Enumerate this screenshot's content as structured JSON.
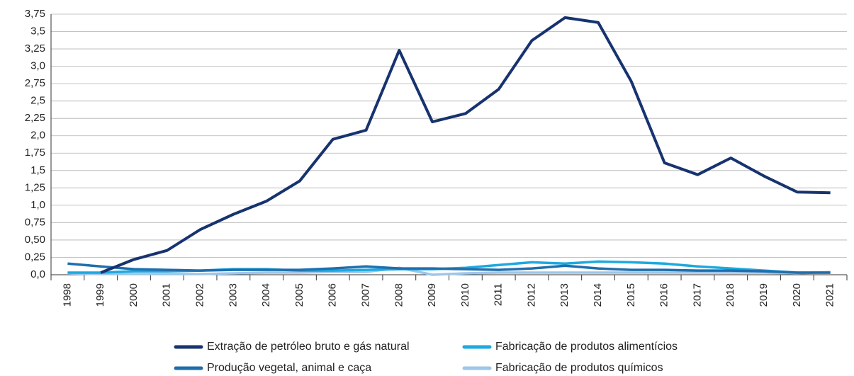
{
  "chart_data": {
    "type": "line",
    "categories": [
      "1998",
      "1999",
      "2000",
      "2001",
      "2002",
      "2003",
      "2004",
      "2005",
      "2006",
      "2007",
      "2008",
      "2009",
      "2010",
      "2011",
      "2012",
      "2013",
      "2014",
      "2015",
      "2016",
      "2017",
      "2018",
      "2019",
      "2020",
      "2021"
    ],
    "series": [
      {
        "name": "Extração de petróleo bruto e gás natural",
        "color": "#17336f",
        "values": [
          null,
          0.03,
          0.22,
          0.35,
          0.65,
          0.87,
          1.06,
          1.35,
          1.95,
          2.08,
          3.23,
          2.2,
          2.32,
          2.67,
          3.37,
          3.7,
          3.63,
          2.78,
          1.61,
          1.44,
          1.68,
          1.42,
          1.19,
          1.18
        ]
      },
      {
        "name": "Produção vegetal, animal e caça",
        "color": "#1f6ead",
        "values": [
          0.16,
          0.12,
          0.08,
          0.07,
          0.06,
          0.07,
          0.07,
          0.07,
          0.09,
          0.12,
          0.09,
          0.09,
          0.08,
          0.07,
          0.09,
          0.13,
          0.09,
          0.07,
          0.07,
          0.06,
          0.06,
          0.05,
          0.03,
          0.03
        ]
      },
      {
        "name": "Fabricação de produtos alimentícios",
        "color": "#1ca9df",
        "values": [
          0.03,
          0.03,
          0.05,
          0.05,
          0.06,
          0.08,
          0.08,
          0.06,
          0.06,
          0.07,
          0.08,
          0.08,
          0.1,
          0.14,
          0.18,
          0.16,
          0.19,
          0.18,
          0.16,
          0.12,
          0.09,
          0.06,
          0.03,
          0.03
        ]
      },
      {
        "name": "Fabricação de produtos químicos",
        "color": "#9ec6ea",
        "values": [
          0.02,
          0.01,
          0.01,
          0.01,
          0.01,
          0.02,
          0.03,
          0.03,
          0.04,
          0.04,
          0.1,
          0.0,
          0.02,
          0.03,
          0.03,
          0.03,
          0.03,
          0.03,
          0.03,
          0.03,
          0.03,
          0.03,
          0.02,
          0.04
        ]
      }
    ],
    "ylim": [
      0,
      3.75
    ],
    "yticks": [
      {
        "value": 0,
        "label": "0,0"
      },
      {
        "value": 0.25,
        "label": "0,25"
      },
      {
        "value": 0.5,
        "label": "0,50"
      },
      {
        "value": 0.75,
        "label": "0,75"
      },
      {
        "value": 1,
        "label": "1,0"
      },
      {
        "value": 1.25,
        "label": "1,25"
      },
      {
        "value": 1.5,
        "label": "1,5"
      },
      {
        "value": 1.75,
        "label": "1,75"
      },
      {
        "value": 2,
        "label": "2,0"
      },
      {
        "value": 2.25,
        "label": "2,25"
      },
      {
        "value": 2.5,
        "label": "2,5"
      },
      {
        "value": 2.75,
        "label": "2,75"
      },
      {
        "value": 3,
        "label": "3,0"
      },
      {
        "value": 3.25,
        "label": "3,25"
      },
      {
        "value": 3.5,
        "label": "3,5"
      },
      {
        "value": 3.75,
        "label": "3,75"
      }
    ],
    "grid": true
  }
}
